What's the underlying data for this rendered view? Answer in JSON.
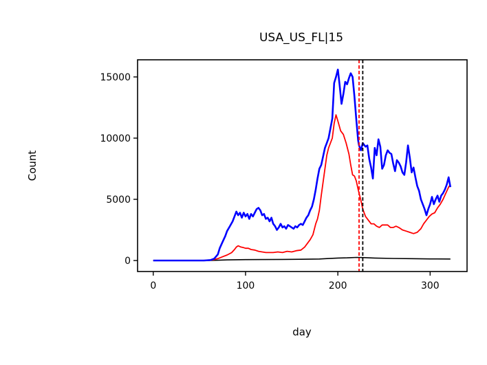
{
  "chart_data": {
    "type": "line",
    "title": "USA_US_FL|15",
    "xlabel": "day",
    "ylabel": "Count",
    "xlim": [
      -17,
      340
    ],
    "ylim": [
      -900,
      16400
    ],
    "xticks": [
      0,
      100,
      200,
      300
    ],
    "yticks": [
      0,
      5000,
      10000,
      15000
    ],
    "grid": false,
    "legend": "none",
    "vlines": [
      {
        "x": 223,
        "color": "#ff0000",
        "style": "dashed"
      },
      {
        "x": 227,
        "color": "#000000",
        "style": "dashed"
      }
    ],
    "series": [
      {
        "color": "#0000ff",
        "width": 2.6,
        "points": [
          [
            0,
            0
          ],
          [
            20,
            0
          ],
          [
            40,
            0
          ],
          [
            55,
            0
          ],
          [
            62,
            40
          ],
          [
            66,
            150
          ],
          [
            70,
            500
          ],
          [
            72,
            1000
          ],
          [
            75,
            1500
          ],
          [
            78,
            2000
          ],
          [
            80,
            2400
          ],
          [
            83,
            2800
          ],
          [
            86,
            3200
          ],
          [
            88,
            3600
          ],
          [
            90,
            4000
          ],
          [
            92,
            3700
          ],
          [
            94,
            3900
          ],
          [
            96,
            3500
          ],
          [
            98,
            3900
          ],
          [
            100,
            3600
          ],
          [
            102,
            3800
          ],
          [
            104,
            3400
          ],
          [
            106,
            3800
          ],
          [
            108,
            3600
          ],
          [
            110,
            3900
          ],
          [
            112,
            4200
          ],
          [
            114,
            4300
          ],
          [
            116,
            4100
          ],
          [
            118,
            3700
          ],
          [
            120,
            3800
          ],
          [
            122,
            3400
          ],
          [
            124,
            3500
          ],
          [
            126,
            3200
          ],
          [
            128,
            3500
          ],
          [
            130,
            3000
          ],
          [
            132,
            2800
          ],
          [
            134,
            2500
          ],
          [
            136,
            2700
          ],
          [
            138,
            3000
          ],
          [
            140,
            2700
          ],
          [
            142,
            2800
          ],
          [
            144,
            2600
          ],
          [
            146,
            2900
          ],
          [
            148,
            2800
          ],
          [
            150,
            2700
          ],
          [
            152,
            2600
          ],
          [
            154,
            2800
          ],
          [
            156,
            2700
          ],
          [
            158,
            2900
          ],
          [
            160,
            3000
          ],
          [
            162,
            2900
          ],
          [
            164,
            3200
          ],
          [
            166,
            3500
          ],
          [
            168,
            3700
          ],
          [
            170,
            4100
          ],
          [
            172,
            4400
          ],
          [
            174,
            5000
          ],
          [
            176,
            5800
          ],
          [
            178,
            6700
          ],
          [
            180,
            7500
          ],
          [
            182,
            7800
          ],
          [
            184,
            8500
          ],
          [
            186,
            9200
          ],
          [
            188,
            9600
          ],
          [
            190,
            10000
          ],
          [
            192,
            10800
          ],
          [
            194,
            11600
          ],
          [
            196,
            14500
          ],
          [
            198,
            15000
          ],
          [
            200,
            15600
          ],
          [
            202,
            14300
          ],
          [
            204,
            12800
          ],
          [
            206,
            13600
          ],
          [
            208,
            14600
          ],
          [
            210,
            14400
          ],
          [
            212,
            14900
          ],
          [
            214,
            15300
          ],
          [
            216,
            15000
          ],
          [
            218,
            13400
          ],
          [
            220,
            11500
          ],
          [
            222,
            9800
          ],
          [
            223,
            9400
          ],
          [
            225,
            9000
          ],
          [
            227,
            9600
          ],
          [
            230,
            9300
          ],
          [
            232,
            9400
          ],
          [
            234,
            8300
          ],
          [
            236,
            7600
          ],
          [
            238,
            6700
          ],
          [
            240,
            9200
          ],
          [
            242,
            8600
          ],
          [
            244,
            9900
          ],
          [
            246,
            9300
          ],
          [
            248,
            7500
          ],
          [
            250,
            7800
          ],
          [
            252,
            8600
          ],
          [
            254,
            9000
          ],
          [
            256,
            8800
          ],
          [
            258,
            8700
          ],
          [
            260,
            7900
          ],
          [
            262,
            7300
          ],
          [
            264,
            8200
          ],
          [
            266,
            8000
          ],
          [
            268,
            7700
          ],
          [
            270,
            7200
          ],
          [
            272,
            7000
          ],
          [
            274,
            8000
          ],
          [
            276,
            9400
          ],
          [
            278,
            8400
          ],
          [
            280,
            7200
          ],
          [
            282,
            7600
          ],
          [
            284,
            6800
          ],
          [
            286,
            6100
          ],
          [
            288,
            5700
          ],
          [
            290,
            5000
          ],
          [
            292,
            4600
          ],
          [
            294,
            4200
          ],
          [
            296,
            3700
          ],
          [
            298,
            4200
          ],
          [
            300,
            4600
          ],
          [
            302,
            5200
          ],
          [
            304,
            4600
          ],
          [
            306,
            5000
          ],
          [
            308,
            5300
          ],
          [
            310,
            4800
          ],
          [
            312,
            5300
          ],
          [
            314,
            5500
          ],
          [
            316,
            5800
          ],
          [
            318,
            6200
          ],
          [
            320,
            6800
          ],
          [
            322,
            6000
          ]
        ]
      },
      {
        "color": "#ff0000",
        "width": 1.8,
        "points": [
          [
            0,
            0
          ],
          [
            50,
            0
          ],
          [
            60,
            20
          ],
          [
            65,
            60
          ],
          [
            70,
            150
          ],
          [
            75,
            300
          ],
          [
            80,
            450
          ],
          [
            85,
            650
          ],
          [
            88,
            900
          ],
          [
            90,
            1100
          ],
          [
            92,
            1200
          ],
          [
            95,
            1100
          ],
          [
            98,
            1050
          ],
          [
            100,
            1000
          ],
          [
            103,
            1000
          ],
          [
            106,
            900
          ],
          [
            110,
            850
          ],
          [
            114,
            750
          ],
          [
            118,
            700
          ],
          [
            122,
            650
          ],
          [
            126,
            650
          ],
          [
            130,
            650
          ],
          [
            135,
            700
          ],
          [
            140,
            650
          ],
          [
            145,
            750
          ],
          [
            150,
            700
          ],
          [
            155,
            800
          ],
          [
            160,
            850
          ],
          [
            164,
            1100
          ],
          [
            167,
            1400
          ],
          [
            170,
            1700
          ],
          [
            173,
            2100
          ],
          [
            176,
            3000
          ],
          [
            178,
            3400
          ],
          [
            180,
            4100
          ],
          [
            182,
            5300
          ],
          [
            184,
            6400
          ],
          [
            186,
            7500
          ],
          [
            188,
            8600
          ],
          [
            190,
            9200
          ],
          [
            192,
            9600
          ],
          [
            194,
            10000
          ],
          [
            196,
            11200
          ],
          [
            198,
            11900
          ],
          [
            200,
            11400
          ],
          [
            203,
            10600
          ],
          [
            206,
            10300
          ],
          [
            209,
            9600
          ],
          [
            212,
            8700
          ],
          [
            214,
            7800
          ],
          [
            216,
            7000
          ],
          [
            218,
            6900
          ],
          [
            220,
            6500
          ],
          [
            222,
            5800
          ],
          [
            223,
            5500
          ],
          [
            225,
            4900
          ],
          [
            227,
            4200
          ],
          [
            230,
            3600
          ],
          [
            233,
            3300
          ],
          [
            236,
            3000
          ],
          [
            239,
            3000
          ],
          [
            242,
            2800
          ],
          [
            245,
            2700
          ],
          [
            248,
            2900
          ],
          [
            251,
            2900
          ],
          [
            254,
            2900
          ],
          [
            257,
            2700
          ],
          [
            260,
            2700
          ],
          [
            263,
            2800
          ],
          [
            266,
            2700
          ],
          [
            270,
            2500
          ],
          [
            274,
            2400
          ],
          [
            278,
            2300
          ],
          [
            282,
            2200
          ],
          [
            286,
            2300
          ],
          [
            290,
            2600
          ],
          [
            293,
            3000
          ],
          [
            296,
            3300
          ],
          [
            299,
            3600
          ],
          [
            302,
            3800
          ],
          [
            305,
            3900
          ],
          [
            308,
            4300
          ],
          [
            311,
            4600
          ],
          [
            314,
            5000
          ],
          [
            317,
            5500
          ],
          [
            320,
            6000
          ],
          [
            322,
            6200
          ]
        ]
      },
      {
        "color": "#000000",
        "width": 1.6,
        "points": [
          [
            0,
            0
          ],
          [
            60,
            0
          ],
          [
            70,
            20
          ],
          [
            80,
            50
          ],
          [
            100,
            70
          ],
          [
            120,
            80
          ],
          [
            140,
            90
          ],
          [
            160,
            100
          ],
          [
            180,
            120
          ],
          [
            190,
            160
          ],
          [
            200,
            200
          ],
          [
            210,
            220
          ],
          [
            220,
            250
          ],
          [
            227,
            240
          ],
          [
            240,
            200
          ],
          [
            260,
            170
          ],
          [
            280,
            150
          ],
          [
            300,
            130
          ],
          [
            322,
            120
          ]
        ]
      }
    ]
  }
}
